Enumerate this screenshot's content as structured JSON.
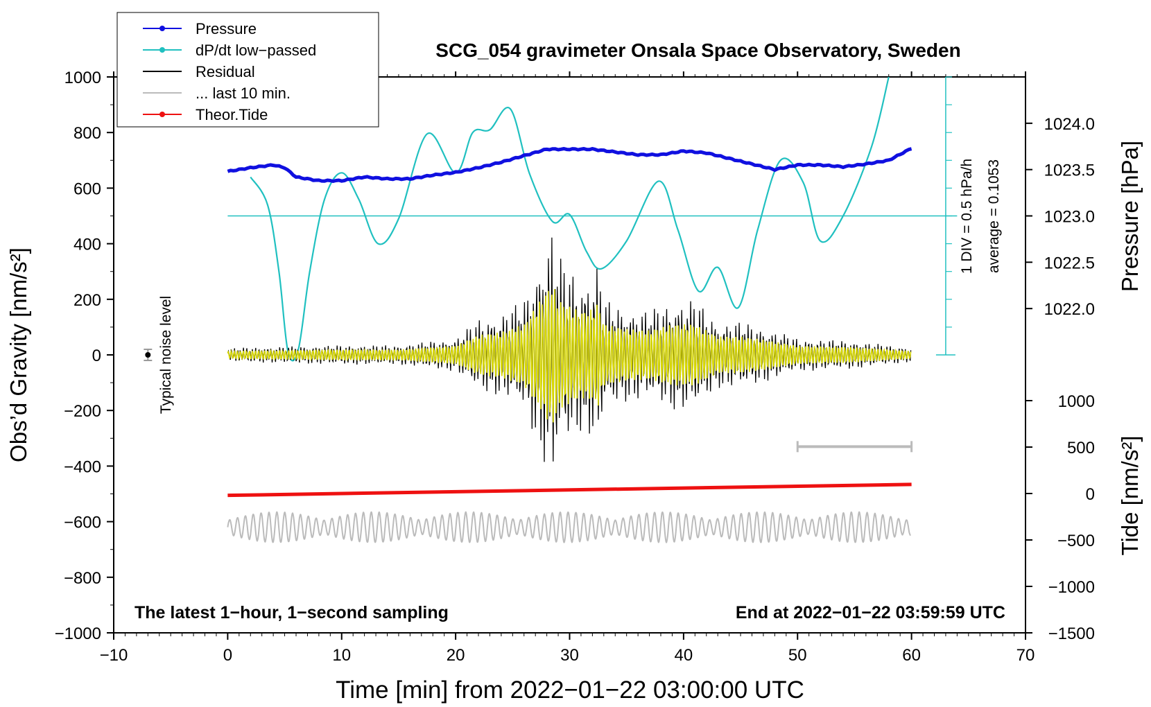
{
  "chart_data": {
    "type": "line",
    "title": "SCG_054 gravimeter Onsala Space Observatory, Sweden",
    "xlabel": "Time [min] from 2022−01−22 03:00:00 UTC",
    "ylabel_left": "Obs’d Gravity [nm/s²]",
    "ylabel_right_pressure": "Pressure [hPa]",
    "ylabel_right_tide": "Tide [nm/s²]",
    "xlim": [
      -10,
      70
    ],
    "ylim_left": [
      -1000,
      1000
    ],
    "x_ticks": [
      -10,
      0,
      10,
      20,
      30,
      40,
      50,
      60,
      70
    ],
    "x_tick_labels": [
      "−10",
      "0",
      "10",
      "20",
      "30",
      "40",
      "50",
      "60",
      "70"
    ],
    "y_ticks_left": [
      1000,
      800,
      600,
      400,
      200,
      0,
      -200,
      -400,
      -600,
      -800,
      -1000
    ],
    "y_tick_labels_left": [
      "1000",
      "800",
      "600",
      "400",
      "200",
      "0",
      "−200",
      "−400",
      "−600",
      "−800",
      "−1000"
    ],
    "pressure_axis": {
      "ticks": [
        1024.0,
        1023.5,
        1023.0,
        1022.5,
        1022.0
      ],
      "tick_labels": [
        "1024.0",
        "1023.5",
        "1023.0",
        "1022.5",
        "1022.0"
      ],
      "range": [
        1021.5,
        1024.5
      ]
    },
    "tide_axis": {
      "ticks": [
        1000,
        500,
        0,
        -500,
        -1000,
        -1500
      ],
      "tick_labels": [
        "1000",
        "500",
        "0",
        "−500",
        "−1000",
        "−1500"
      ],
      "range": [
        -1500,
        1500
      ]
    },
    "legend": [
      {
        "label": "Pressure",
        "color": "#1010e0",
        "marker": true
      },
      {
        "label": "dP/dt low−passed",
        "color": "#20c0c0",
        "marker": true
      },
      {
        "label": "Residual",
        "color": "#000000",
        "marker": false
      },
      {
        "label": "... last 10 min.",
        "color": "#bbbbbb",
        "marker": false
      },
      {
        "label": "Theor.Tide",
        "color": "#ee1111",
        "marker": true
      }
    ],
    "series": [
      {
        "name": "Pressure",
        "color": "#1010e0",
        "units": "hPa",
        "x": [
          0,
          2,
          4,
          5,
          6,
          8,
          10,
          12,
          14,
          16,
          18,
          20,
          22,
          24,
          26,
          28,
          30,
          32,
          34,
          36,
          38,
          40,
          42,
          44,
          46,
          48,
          50,
          52,
          54,
          56,
          58,
          60
        ],
        "y": [
          1023.48,
          1023.52,
          1023.55,
          1023.52,
          1023.42,
          1023.38,
          1023.38,
          1023.42,
          1023.4,
          1023.4,
          1023.44,
          1023.47,
          1023.52,
          1023.58,
          1023.65,
          1023.72,
          1023.72,
          1023.72,
          1023.69,
          1023.66,
          1023.66,
          1023.7,
          1023.68,
          1023.62,
          1023.56,
          1023.5,
          1023.55,
          1023.55,
          1023.53,
          1023.56,
          1023.6,
          1023.73
        ]
      },
      {
        "name": "dP/dt low-passed",
        "color": "#20c0c0",
        "units": "nm/s² (plot scale)",
        "x": [
          2,
          3.5,
          4.5,
          5.3,
          6.2,
          7.2,
          8.5,
          10,
          11.5,
          13.2,
          15,
          17.5,
          20,
          21.5,
          23,
          24.8,
          26.5,
          28.5,
          30,
          31.5,
          32.8,
          35,
          37.8,
          39.5,
          41.3,
          43,
          44.8,
          46.5,
          48.5,
          50.5,
          52,
          54,
          56.5,
          58
        ],
        "y": [
          640,
          540,
          300,
          10,
          20,
          300,
          560,
          655,
          560,
          400,
          490,
          795,
          655,
          800,
          810,
          885,
          650,
          480,
          505,
          370,
          310,
          410,
          625,
          450,
          230,
          315,
          170,
          450,
          700,
          620,
          410,
          500,
          750,
          1000
        ]
      },
      {
        "name": "Residual",
        "color": "#000000",
        "units": "nm/s²",
        "x": [
          0,
          5,
          10,
          15,
          20,
          22,
          24,
          26,
          27,
          28,
          28.5,
          29,
          30,
          31,
          32,
          32.5,
          33,
          35,
          37,
          39,
          41,
          43,
          45,
          47,
          50,
          55,
          60
        ],
        "y": [
          25,
          30,
          35,
          35,
          60,
          130,
          150,
          200,
          310,
          420,
          470,
          360,
          320,
          280,
          300,
          340,
          200,
          170,
          160,
          200,
          200,
          120,
          120,
          100,
          60,
          50,
          25
        ]
      },
      {
        "name": "... last 10 min.",
        "color": "#bbbbbb",
        "units": "nm/s²",
        "x": [
          0,
          10,
          20,
          30,
          40,
          50,
          60
        ],
        "y": [
          -620,
          -620,
          -620,
          -620,
          -620,
          -620,
          -620
        ]
      },
      {
        "name": "Theor.Tide",
        "color": "#ee1111",
        "units": "nm/s²",
        "x": [
          0,
          60
        ],
        "y": [
          -20,
          98
        ]
      }
    ],
    "reference_line": {
      "name": "dP/dt average",
      "y": 500,
      "color": "#20c0c0"
    },
    "dpdt_scale_bar": {
      "x": 63,
      "y_range": [
        0,
        1000
      ],
      "label_div": "1 DIV = 0.5 hPa/h",
      "label_avg": "average = 0.1053"
    },
    "noise_marker": {
      "x": -7,
      "y": 0,
      "half_range": 20,
      "label": "Typical noise level"
    },
    "ten_minute_bar": {
      "x_range": [
        50,
        60
      ],
      "y": -330
    },
    "annotation_left": "The latest 1−hour, 1−second sampling",
    "annotation_right": "End at 2022−01−22 03:59:59 UTC"
  }
}
